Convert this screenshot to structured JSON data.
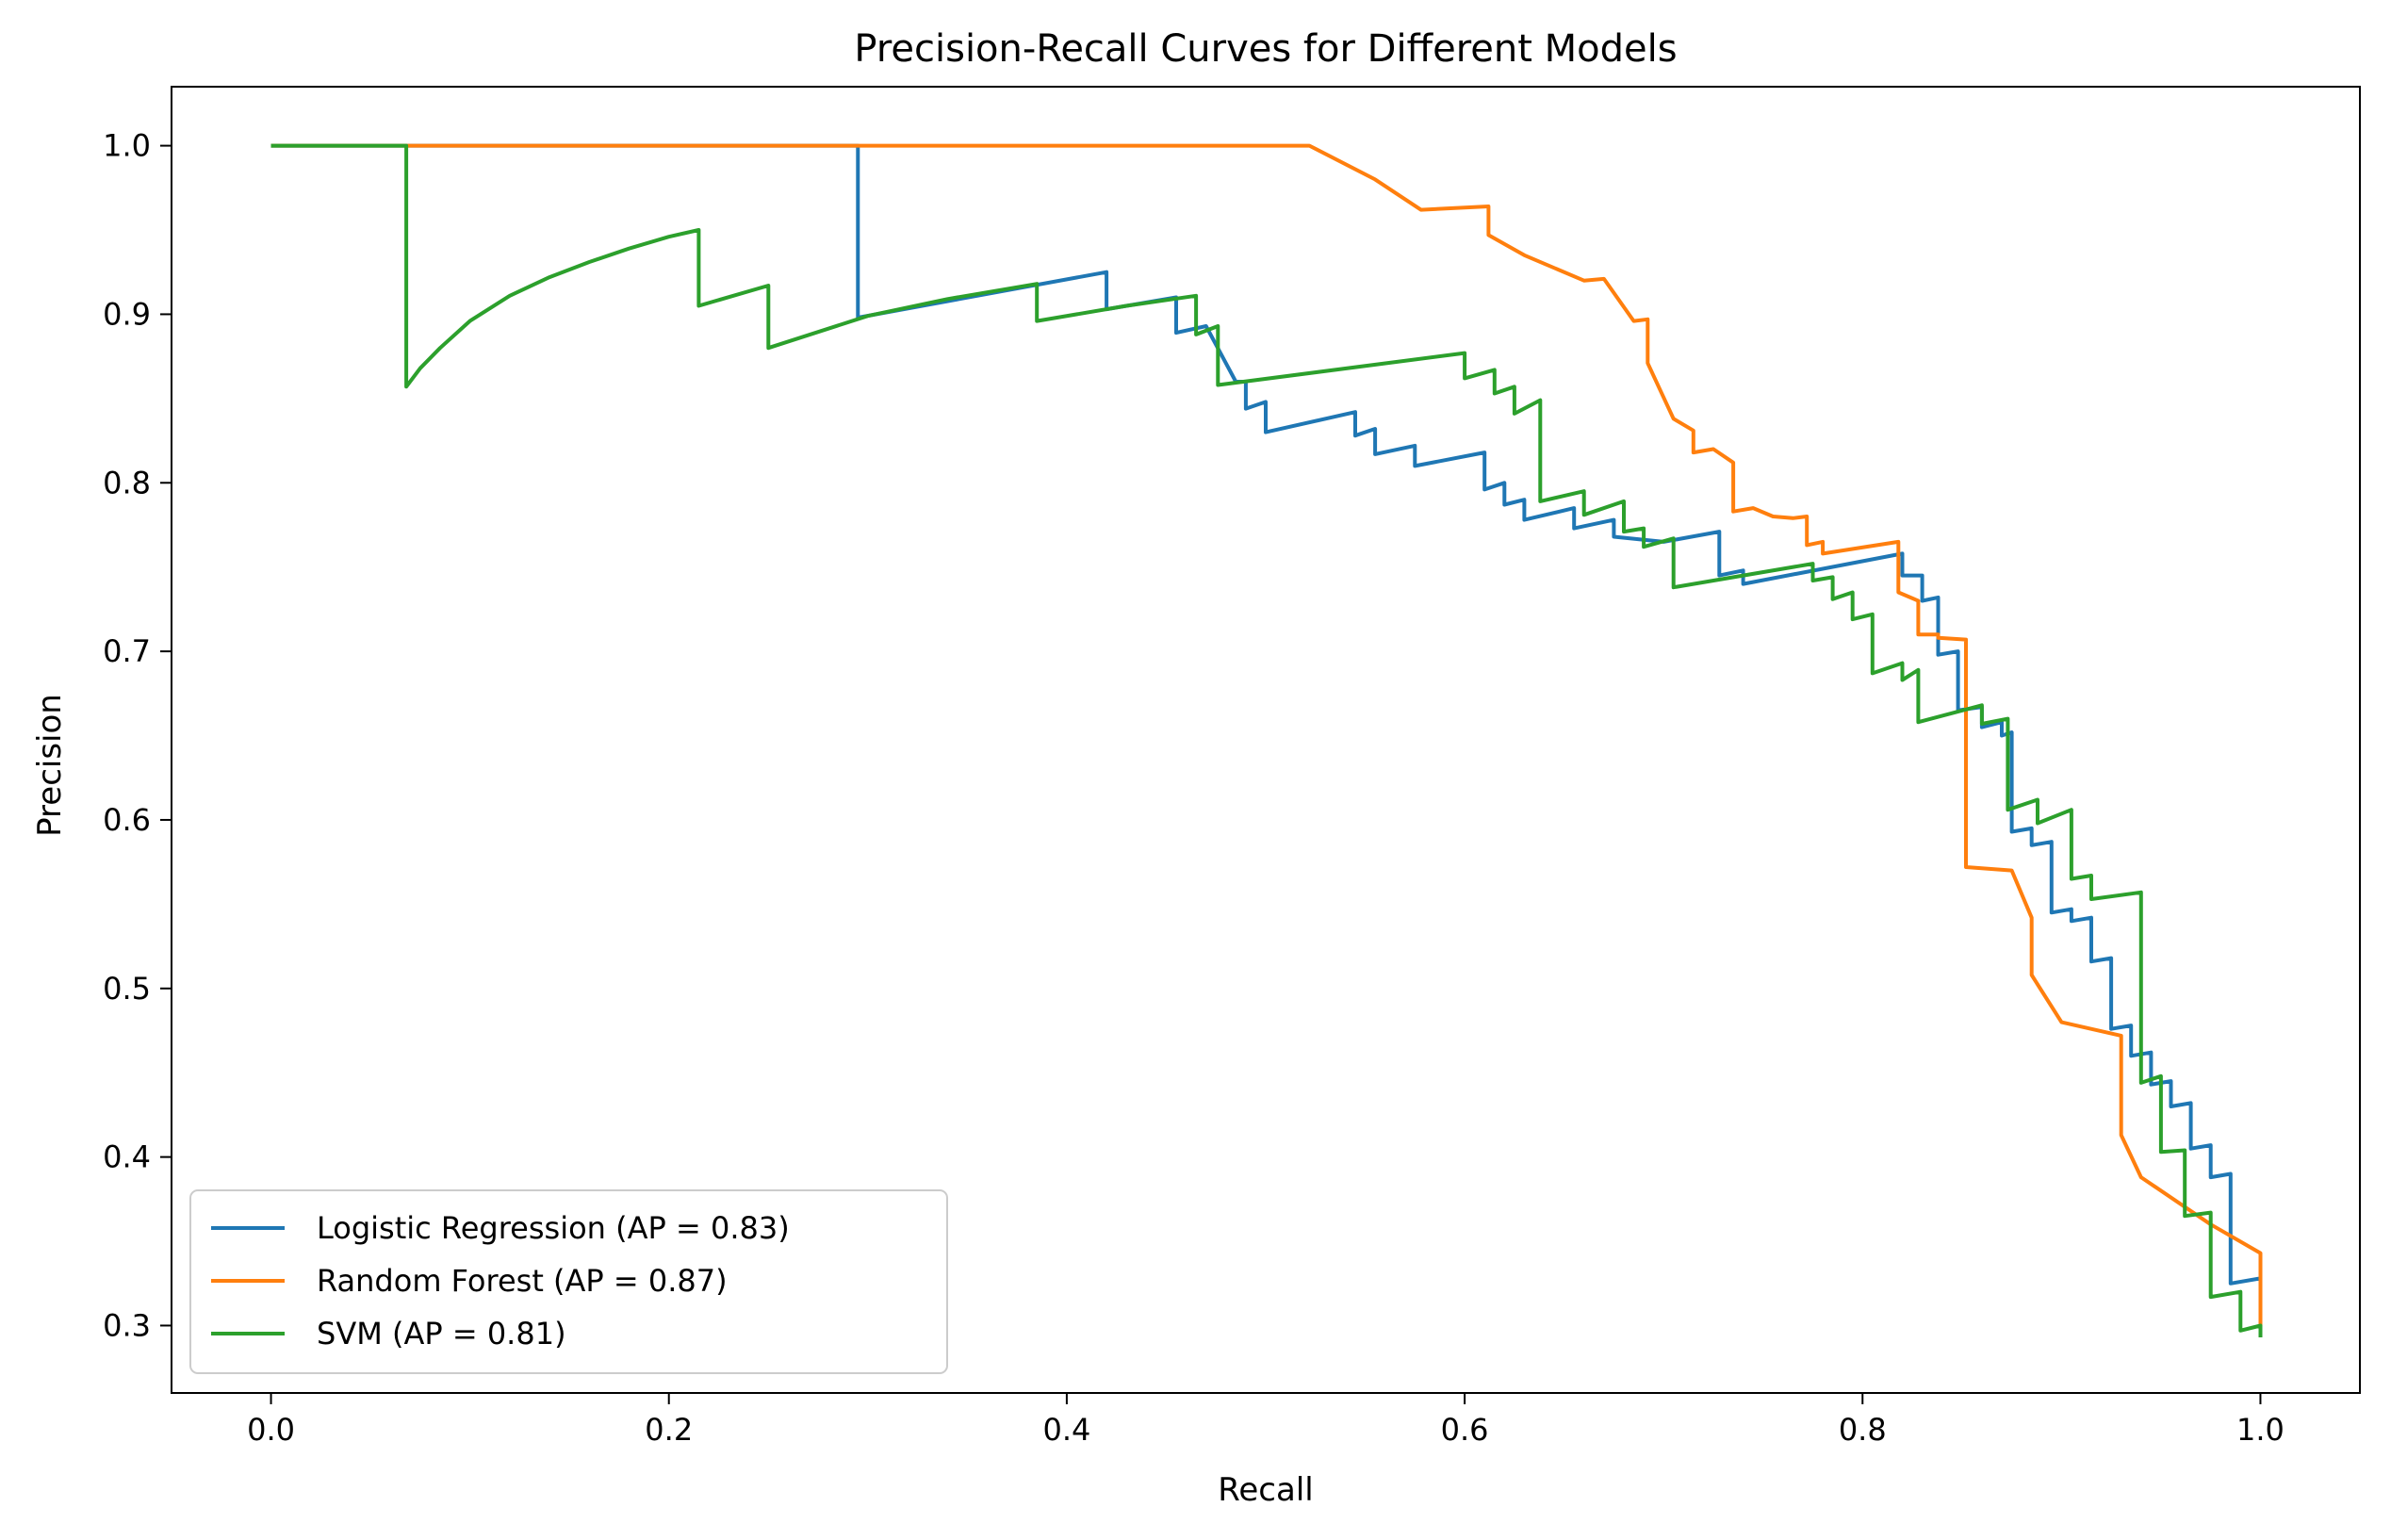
{
  "chart_data": {
    "type": "line",
    "title": "Precision-Recall Curves for Different Models",
    "xlabel": "Recall",
    "ylabel": "Precision",
    "xlim": [
      -0.05,
      1.05
    ],
    "ylim": [
      0.26,
      1.035
    ],
    "xticks": [
      0.0,
      0.2,
      0.4,
      0.6,
      0.8,
      1.0
    ],
    "xtick_labels": [
      "0.0",
      "0.2",
      "0.4",
      "0.6",
      "0.8",
      "1.0"
    ],
    "yticks": [
      0.3,
      0.4,
      0.5,
      0.6,
      0.7,
      0.8,
      0.9,
      1.0
    ],
    "ytick_labels": [
      "0.3",
      "0.4",
      "0.5",
      "0.6",
      "0.7",
      "0.8",
      "0.9",
      "1.0"
    ],
    "grid": false,
    "legend_position": "lower-left",
    "series": [
      {
        "name": "Logistic Regression (AP = 0.83)",
        "color": "#1f77b4",
        "points": [
          [
            0.0,
            1.0
          ],
          [
            0.295,
            1.0
          ],
          [
            0.295,
            0.898
          ],
          [
            0.42,
            0.925
          ],
          [
            0.42,
            0.903
          ],
          [
            0.455,
            0.91
          ],
          [
            0.455,
            0.889
          ],
          [
            0.47,
            0.893
          ],
          [
            0.485,
            0.86
          ],
          [
            0.49,
            0.86
          ],
          [
            0.49,
            0.844
          ],
          [
            0.5,
            0.848
          ],
          [
            0.5,
            0.83
          ],
          [
            0.545,
            0.842
          ],
          [
            0.545,
            0.828
          ],
          [
            0.555,
            0.832
          ],
          [
            0.555,
            0.817
          ],
          [
            0.575,
            0.822
          ],
          [
            0.575,
            0.81
          ],
          [
            0.61,
            0.818
          ],
          [
            0.61,
            0.796
          ],
          [
            0.62,
            0.8
          ],
          [
            0.62,
            0.787
          ],
          [
            0.63,
            0.79
          ],
          [
            0.63,
            0.778
          ],
          [
            0.655,
            0.785
          ],
          [
            0.655,
            0.773
          ],
          [
            0.675,
            0.778
          ],
          [
            0.675,
            0.768
          ],
          [
            0.7,
            0.765
          ],
          [
            0.728,
            0.771
          ],
          [
            0.728,
            0.745
          ],
          [
            0.74,
            0.748
          ],
          [
            0.74,
            0.74
          ],
          [
            0.82,
            0.758
          ],
          [
            0.82,
            0.745
          ],
          [
            0.83,
            0.745
          ],
          [
            0.83,
            0.73
          ],
          [
            0.838,
            0.732
          ],
          [
            0.838,
            0.698
          ],
          [
            0.848,
            0.7
          ],
          [
            0.848,
            0.665
          ],
          [
            0.86,
            0.667
          ],
          [
            0.86,
            0.655
          ],
          [
            0.87,
            0.658
          ],
          [
            0.87,
            0.65
          ],
          [
            0.875,
            0.652
          ],
          [
            0.875,
            0.593
          ],
          [
            0.885,
            0.595
          ],
          [
            0.885,
            0.585
          ],
          [
            0.895,
            0.587
          ],
          [
            0.895,
            0.545
          ],
          [
            0.905,
            0.547
          ],
          [
            0.905,
            0.54
          ],
          [
            0.915,
            0.542
          ],
          [
            0.915,
            0.516
          ],
          [
            0.925,
            0.518
          ],
          [
            0.925,
            0.476
          ],
          [
            0.935,
            0.478
          ],
          [
            0.935,
            0.46
          ],
          [
            0.945,
            0.462
          ],
          [
            0.945,
            0.443
          ],
          [
            0.955,
            0.445
          ],
          [
            0.955,
            0.43
          ],
          [
            0.965,
            0.432
          ],
          [
            0.965,
            0.405
          ],
          [
            0.975,
            0.407
          ],
          [
            0.975,
            0.388
          ],
          [
            0.985,
            0.39
          ],
          [
            0.985,
            0.325
          ],
          [
            1.0,
            0.328
          ],
          [
            1.0,
            0.3
          ]
        ]
      },
      {
        "name": "Random Forest (AP = 0.87)",
        "color": "#ff7f0e",
        "points": [
          [
            0.0,
            1.0
          ],
          [
            0.522,
            1.0
          ],
          [
            0.555,
            0.98
          ],
          [
            0.578,
            0.962
          ],
          [
            0.612,
            0.964
          ],
          [
            0.612,
            0.947
          ],
          [
            0.63,
            0.935
          ],
          [
            0.66,
            0.92
          ],
          [
            0.67,
            0.921
          ],
          [
            0.685,
            0.896
          ],
          [
            0.692,
            0.897
          ],
          [
            0.692,
            0.871
          ],
          [
            0.705,
            0.838
          ],
          [
            0.715,
            0.831
          ],
          [
            0.715,
            0.818
          ],
          [
            0.725,
            0.82
          ],
          [
            0.735,
            0.812
          ],
          [
            0.735,
            0.783
          ],
          [
            0.745,
            0.785
          ],
          [
            0.755,
            0.78
          ],
          [
            0.765,
            0.779
          ],
          [
            0.772,
            0.78
          ],
          [
            0.772,
            0.763
          ],
          [
            0.78,
            0.765
          ],
          [
            0.78,
            0.758
          ],
          [
            0.818,
            0.765
          ],
          [
            0.818,
            0.735
          ],
          [
            0.828,
            0.73
          ],
          [
            0.828,
            0.71
          ],
          [
            0.838,
            0.71
          ],
          [
            0.838,
            0.708
          ],
          [
            0.852,
            0.707
          ],
          [
            0.852,
            0.572
          ],
          [
            0.875,
            0.57
          ],
          [
            0.885,
            0.542
          ],
          [
            0.885,
            0.508
          ],
          [
            0.9,
            0.48
          ],
          [
            0.93,
            0.472
          ],
          [
            0.93,
            0.413
          ],
          [
            0.94,
            0.388
          ],
          [
            0.975,
            0.36
          ],
          [
            1.0,
            0.343
          ],
          [
            1.0,
            0.3
          ]
        ]
      },
      {
        "name": "SVM (AP = 0.81)",
        "color": "#2ca02c",
        "points": [
          [
            0.0,
            1.0
          ],
          [
            0.068,
            1.0
          ],
          [
            0.068,
            0.857
          ],
          [
            0.075,
            0.868
          ],
          [
            0.085,
            0.88
          ],
          [
            0.1,
            0.896
          ],
          [
            0.12,
            0.911
          ],
          [
            0.14,
            0.922
          ],
          [
            0.16,
            0.931
          ],
          [
            0.18,
            0.939
          ],
          [
            0.2,
            0.946
          ],
          [
            0.215,
            0.95
          ],
          [
            0.215,
            0.905
          ],
          [
            0.25,
            0.917
          ],
          [
            0.25,
            0.88
          ],
          [
            0.3,
            0.899
          ],
          [
            0.34,
            0.909
          ],
          [
            0.385,
            0.918
          ],
          [
            0.385,
            0.896
          ],
          [
            0.43,
            0.905
          ],
          [
            0.465,
            0.911
          ],
          [
            0.465,
            0.888
          ],
          [
            0.476,
            0.893
          ],
          [
            0.476,
            0.858
          ],
          [
            0.6,
            0.877
          ],
          [
            0.6,
            0.862
          ],
          [
            0.615,
            0.867
          ],
          [
            0.615,
            0.853
          ],
          [
            0.625,
            0.857
          ],
          [
            0.625,
            0.841
          ],
          [
            0.638,
            0.849
          ],
          [
            0.638,
            0.789
          ],
          [
            0.66,
            0.795
          ],
          [
            0.66,
            0.781
          ],
          [
            0.68,
            0.789
          ],
          [
            0.68,
            0.771
          ],
          [
            0.69,
            0.773
          ],
          [
            0.69,
            0.762
          ],
          [
            0.705,
            0.767
          ],
          [
            0.705,
            0.738
          ],
          [
            0.775,
            0.752
          ],
          [
            0.775,
            0.742
          ],
          [
            0.785,
            0.744
          ],
          [
            0.785,
            0.731
          ],
          [
            0.795,
            0.735
          ],
          [
            0.795,
            0.719
          ],
          [
            0.805,
            0.722
          ],
          [
            0.805,
            0.687
          ],
          [
            0.82,
            0.693
          ],
          [
            0.82,
            0.683
          ],
          [
            0.828,
            0.689
          ],
          [
            0.828,
            0.658
          ],
          [
            0.86,
            0.668
          ],
          [
            0.86,
            0.657
          ],
          [
            0.873,
            0.66
          ],
          [
            0.873,
            0.606
          ],
          [
            0.888,
            0.612
          ],
          [
            0.888,
            0.598
          ],
          [
            0.905,
            0.606
          ],
          [
            0.905,
            0.565
          ],
          [
            0.915,
            0.567
          ],
          [
            0.915,
            0.553
          ],
          [
            0.94,
            0.557
          ],
          [
            0.94,
            0.444
          ],
          [
            0.95,
            0.448
          ],
          [
            0.95,
            0.403
          ],
          [
            0.962,
            0.404
          ],
          [
            0.962,
            0.365
          ],
          [
            0.975,
            0.367
          ],
          [
            0.975,
            0.317
          ],
          [
            0.99,
            0.32
          ],
          [
            0.99,
            0.297
          ],
          [
            1.0,
            0.3
          ],
          [
            1.0,
            0.293
          ]
        ]
      }
    ]
  }
}
